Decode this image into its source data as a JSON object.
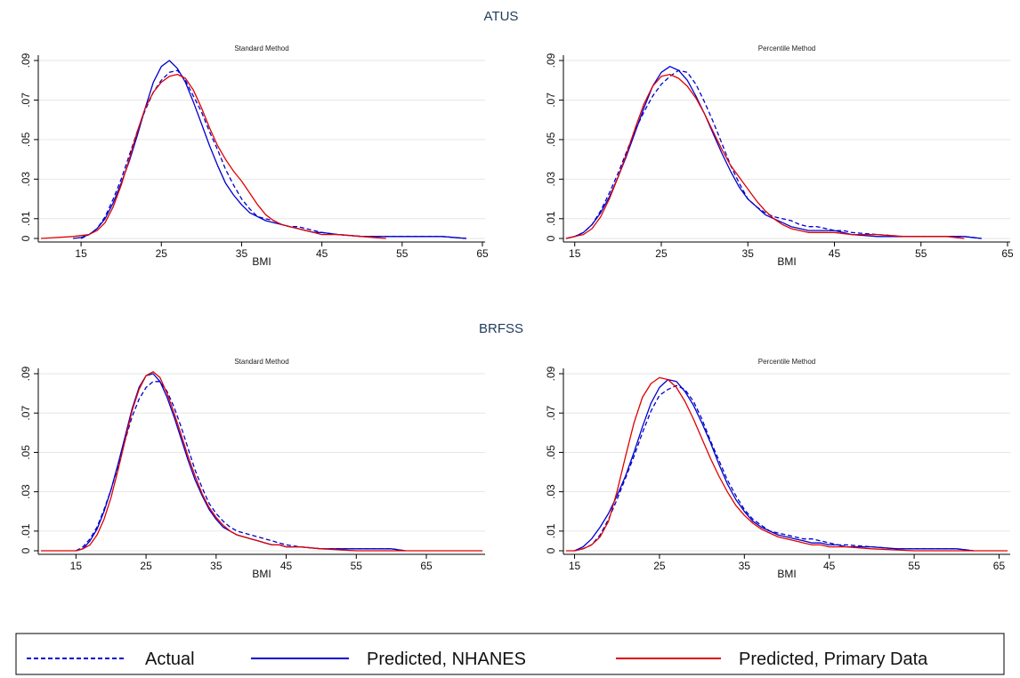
{
  "legend": [
    {
      "label": "Actual",
      "color": "#0000cc",
      "dash": "dashed"
    },
    {
      "label": "Predicted, NHANES",
      "color": "#0000cc",
      "dash": "solid"
    },
    {
      "label": "Predicted, Primary Data",
      "color": "#e00000",
      "dash": "solid"
    }
  ],
  "chart_data": [
    {
      "type": "line",
      "section": "ATUS",
      "title": "Standard Method",
      "xlabel": "BMI",
      "ylabel": "",
      "xlim": [
        10,
        65
      ],
      "ylim": [
        0,
        0.09
      ],
      "xticks": [
        "15",
        "25",
        "35",
        "45",
        "55",
        "65"
      ],
      "yticks": [
        "0",
        ".01",
        ".03",
        ".05",
        ".07",
        ".09"
      ],
      "grid": true,
      "series": [
        {
          "name": "Actual",
          "x": [
            15,
            16,
            17,
            18,
            19,
            20,
            21,
            22,
            23,
            24,
            25,
            26,
            27,
            28,
            29,
            30,
            31,
            32,
            33,
            34,
            35,
            36,
            37,
            38,
            39,
            40,
            41,
            42,
            43,
            44,
            45,
            47,
            50,
            53,
            55,
            58,
            60,
            63
          ],
          "y": [
            0.0,
            0.002,
            0.005,
            0.011,
            0.02,
            0.03,
            0.042,
            0.054,
            0.065,
            0.074,
            0.08,
            0.084,
            0.085,
            0.08,
            0.072,
            0.064,
            0.054,
            0.045,
            0.035,
            0.027,
            0.02,
            0.015,
            0.011,
            0.01,
            0.009,
            0.007,
            0.006,
            0.006,
            0.005,
            0.004,
            0.003,
            0.002,
            0.001,
            0.001,
            0.001,
            0.001,
            0.001,
            0.0
          ]
        },
        {
          "name": "Predicted, NHANES",
          "x": [
            14,
            15,
            16,
            17,
            18,
            19,
            20,
            21,
            22,
            23,
            24,
            25,
            26,
            27,
            28,
            29,
            30,
            31,
            32,
            33,
            34,
            35,
            36,
            37,
            38,
            39,
            40,
            41,
            42,
            43,
            44,
            45,
            47,
            50,
            53,
            55,
            58,
            60,
            63
          ],
          "y": [
            0.0,
            0.0005,
            0.002,
            0.005,
            0.01,
            0.018,
            0.028,
            0.039,
            0.052,
            0.066,
            0.079,
            0.087,
            0.09,
            0.086,
            0.079,
            0.069,
            0.058,
            0.047,
            0.037,
            0.028,
            0.022,
            0.017,
            0.013,
            0.011,
            0.009,
            0.008,
            0.007,
            0.006,
            0.005,
            0.004,
            0.003,
            0.003,
            0.002,
            0.001,
            0.001,
            0.001,
            0.001,
            0.001,
            0.0
          ]
        },
        {
          "name": "Predicted, Primary Data",
          "x": [
            10,
            12,
            14,
            15,
            16,
            17,
            18,
            19,
            20,
            21,
            22,
            23,
            24,
            25,
            26,
            27,
            28,
            29,
            30,
            31,
            32,
            33,
            34,
            35,
            36,
            37,
            38,
            39,
            40,
            41,
            42,
            43,
            44,
            45,
            47,
            50,
            53
          ],
          "y": [
            0.0,
            0.0005,
            0.001,
            0.0015,
            0.002,
            0.004,
            0.008,
            0.016,
            0.027,
            0.04,
            0.054,
            0.066,
            0.074,
            0.079,
            0.082,
            0.083,
            0.081,
            0.075,
            0.066,
            0.056,
            0.047,
            0.04,
            0.034,
            0.029,
            0.023,
            0.017,
            0.012,
            0.009,
            0.007,
            0.006,
            0.005,
            0.004,
            0.003,
            0.002,
            0.002,
            0.001,
            0.0
          ]
        }
      ]
    },
    {
      "type": "line",
      "section": "",
      "title": "Percentile Method",
      "xlabel": "BMI",
      "ylabel": "",
      "xlim": [
        14,
        65
      ],
      "ylim": [
        0,
        0.09
      ],
      "xticks": [
        "15",
        "25",
        "35",
        "45",
        "55",
        "65"
      ],
      "yticks": [
        "0",
        ".01",
        ".03",
        ".05",
        ".07",
        ".09"
      ],
      "grid": true,
      "series": [
        {
          "name": "Actual",
          "x": [
            14,
            15,
            16,
            17,
            18,
            19,
            20,
            21,
            22,
            23,
            24,
            25,
            26,
            27,
            28,
            29,
            30,
            31,
            32,
            33,
            34,
            35,
            36,
            37,
            38,
            39,
            40,
            41,
            42,
            43,
            44,
            45,
            46,
            47,
            50,
            53,
            55,
            58,
            60,
            62
          ],
          "y": [
            0.0,
            0.001,
            0.003,
            0.007,
            0.014,
            0.023,
            0.033,
            0.044,
            0.055,
            0.064,
            0.072,
            0.078,
            0.082,
            0.085,
            0.084,
            0.078,
            0.069,
            0.059,
            0.048,
            0.037,
            0.028,
            0.02,
            0.016,
            0.013,
            0.011,
            0.01,
            0.009,
            0.007,
            0.006,
            0.006,
            0.005,
            0.004,
            0.004,
            0.003,
            0.002,
            0.001,
            0.001,
            0.001,
            0.001,
            0.0
          ]
        },
        {
          "name": "Predicted, NHANES",
          "x": [
            14,
            15,
            16,
            17,
            18,
            19,
            20,
            21,
            22,
            23,
            24,
            25,
            26,
            27,
            28,
            29,
            30,
            31,
            32,
            33,
            34,
            35,
            36,
            37,
            38,
            39,
            40,
            41,
            42,
            43,
            44,
            45,
            46,
            47,
            50,
            53,
            55,
            58,
            60,
            62
          ],
          "y": [
            0.0,
            0.001,
            0.003,
            0.007,
            0.013,
            0.021,
            0.031,
            0.042,
            0.054,
            0.066,
            0.077,
            0.084,
            0.087,
            0.085,
            0.08,
            0.072,
            0.063,
            0.053,
            0.043,
            0.034,
            0.026,
            0.02,
            0.016,
            0.012,
            0.01,
            0.008,
            0.006,
            0.005,
            0.004,
            0.004,
            0.004,
            0.004,
            0.003,
            0.002,
            0.001,
            0.001,
            0.001,
            0.001,
            0.001,
            0.0
          ]
        },
        {
          "name": "Predicted, Primary Data",
          "x": [
            14,
            15,
            16,
            17,
            18,
            19,
            20,
            21,
            22,
            23,
            24,
            25,
            26,
            27,
            28,
            29,
            30,
            31,
            32,
            33,
            34,
            35,
            36,
            37,
            38,
            39,
            40,
            41,
            42,
            43,
            44,
            45,
            47,
            50,
            53,
            55,
            58,
            60
          ],
          "y": [
            0.0,
            0.001,
            0.002,
            0.005,
            0.011,
            0.02,
            0.031,
            0.043,
            0.056,
            0.068,
            0.077,
            0.082,
            0.083,
            0.081,
            0.077,
            0.071,
            0.063,
            0.054,
            0.045,
            0.037,
            0.031,
            0.025,
            0.019,
            0.014,
            0.01,
            0.007,
            0.005,
            0.004,
            0.003,
            0.003,
            0.003,
            0.003,
            0.002,
            0.002,
            0.001,
            0.001,
            0.001,
            0.0
          ]
        }
      ]
    },
    {
      "type": "line",
      "section": "BRFSS",
      "title": "Standard Method",
      "xlabel": "BMI",
      "ylabel": "",
      "xlim": [
        10,
        73
      ],
      "ylim": [
        0,
        0.09
      ],
      "xticks": [
        "15",
        "25",
        "35",
        "45",
        "55",
        "65"
      ],
      "yticks": [
        "0",
        ".01",
        ".03",
        ".05",
        ".07",
        ".09"
      ],
      "grid": true,
      "series": [
        {
          "name": "Actual",
          "x": [
            15,
            16,
            17,
            18,
            19,
            20,
            21,
            22,
            23,
            24,
            25,
            26,
            27,
            28,
            29,
            30,
            31,
            32,
            33,
            34,
            35,
            36,
            37,
            38,
            39,
            40,
            41,
            42,
            43,
            44,
            45,
            47,
            50,
            55,
            58,
            60,
            62
          ],
          "y": [
            0.0,
            0.002,
            0.006,
            0.012,
            0.021,
            0.031,
            0.043,
            0.056,
            0.068,
            0.077,
            0.083,
            0.086,
            0.086,
            0.081,
            0.073,
            0.063,
            0.052,
            0.041,
            0.032,
            0.024,
            0.019,
            0.015,
            0.012,
            0.01,
            0.009,
            0.008,
            0.007,
            0.006,
            0.005,
            0.004,
            0.003,
            0.002,
            0.001,
            0.001,
            0.001,
            0.001,
            0.0
          ]
        },
        {
          "name": "Predicted, NHANES",
          "x": [
            15,
            16,
            17,
            18,
            19,
            20,
            21,
            22,
            23,
            24,
            25,
            26,
            27,
            28,
            29,
            30,
            31,
            32,
            33,
            34,
            35,
            36,
            37,
            38,
            39,
            40,
            41,
            42,
            43,
            44,
            45,
            47,
            50,
            55,
            58,
            60,
            62
          ],
          "y": [
            0.0,
            0.001,
            0.005,
            0.011,
            0.02,
            0.031,
            0.044,
            0.058,
            0.072,
            0.083,
            0.089,
            0.09,
            0.086,
            0.078,
            0.068,
            0.057,
            0.046,
            0.036,
            0.028,
            0.021,
            0.016,
            0.012,
            0.01,
            0.008,
            0.007,
            0.006,
            0.005,
            0.004,
            0.003,
            0.003,
            0.002,
            0.002,
            0.001,
            0.001,
            0.001,
            0.001,
            0.0
          ]
        },
        {
          "name": "Predicted, Primary Data",
          "x": [
            10,
            12,
            14,
            15,
            16,
            17,
            18,
            19,
            20,
            21,
            22,
            23,
            24,
            25,
            26,
            27,
            28,
            29,
            30,
            31,
            32,
            33,
            34,
            35,
            36,
            37,
            38,
            39,
            40,
            41,
            42,
            43,
            44,
            45,
            47,
            50,
            55,
            60,
            65,
            70,
            73
          ],
          "y": [
            0.0,
            0.0,
            0.0,
            0.0,
            0.001,
            0.003,
            0.008,
            0.016,
            0.027,
            0.041,
            0.056,
            0.071,
            0.082,
            0.089,
            0.091,
            0.088,
            0.08,
            0.07,
            0.059,
            0.048,
            0.038,
            0.029,
            0.022,
            0.017,
            0.013,
            0.01,
            0.008,
            0.007,
            0.006,
            0.005,
            0.004,
            0.003,
            0.003,
            0.002,
            0.002,
            0.001,
            0.0,
            0.0,
            0.0,
            0.0,
            0.0
          ]
        }
      ]
    },
    {
      "type": "line",
      "section": "",
      "title": "Percentile Method",
      "xlabel": "BMI",
      "ylabel": "",
      "xlim": [
        14,
        66
      ],
      "ylim": [
        0,
        0.09
      ],
      "xticks": [
        "15",
        "25",
        "35",
        "45",
        "55",
        "65"
      ],
      "yticks": [
        "0",
        ".01",
        ".03",
        ".05",
        ".07",
        ".09"
      ],
      "grid": true,
      "series": [
        {
          "name": "Actual",
          "x": [
            15,
            16,
            17,
            18,
            19,
            20,
            21,
            22,
            23,
            24,
            25,
            26,
            27,
            28,
            29,
            30,
            31,
            32,
            33,
            34,
            35,
            36,
            37,
            38,
            39,
            40,
            41,
            42,
            43,
            44,
            45,
            46,
            47,
            50,
            53,
            55,
            58,
            60,
            62
          ],
          "y": [
            0.0,
            0.001,
            0.003,
            0.008,
            0.016,
            0.026,
            0.037,
            0.048,
            0.06,
            0.071,
            0.079,
            0.082,
            0.084,
            0.082,
            0.076,
            0.067,
            0.056,
            0.046,
            0.036,
            0.028,
            0.021,
            0.016,
            0.013,
            0.01,
            0.009,
            0.008,
            0.007,
            0.006,
            0.006,
            0.005,
            0.004,
            0.003,
            0.003,
            0.002,
            0.001,
            0.001,
            0.001,
            0.001,
            0.0
          ]
        },
        {
          "name": "Predicted, NHANES",
          "x": [
            15,
            16,
            17,
            18,
            19,
            20,
            21,
            22,
            23,
            24,
            25,
            26,
            27,
            28,
            29,
            30,
            31,
            32,
            33,
            34,
            35,
            36,
            37,
            38,
            39,
            40,
            41,
            42,
            43,
            44,
            45,
            46,
            47,
            50,
            53,
            55,
            58,
            60,
            62
          ],
          "y": [
            0.0,
            0.002,
            0.006,
            0.012,
            0.019,
            0.028,
            0.038,
            0.05,
            0.063,
            0.075,
            0.083,
            0.087,
            0.086,
            0.081,
            0.074,
            0.065,
            0.055,
            0.044,
            0.034,
            0.026,
            0.02,
            0.015,
            0.012,
            0.01,
            0.008,
            0.007,
            0.006,
            0.005,
            0.004,
            0.004,
            0.003,
            0.003,
            0.002,
            0.002,
            0.001,
            0.001,
            0.001,
            0.001,
            0.0
          ]
        },
        {
          "name": "Predicted, Primary Data",
          "x": [
            14,
            15,
            16,
            17,
            18,
            19,
            20,
            21,
            22,
            23,
            24,
            25,
            26,
            27,
            28,
            29,
            30,
            31,
            32,
            33,
            34,
            35,
            36,
            37,
            38,
            39,
            40,
            41,
            42,
            43,
            44,
            45,
            47,
            50,
            55,
            60,
            66
          ],
          "y": [
            0.0,
            0.0,
            0.001,
            0.003,
            0.007,
            0.015,
            0.03,
            0.048,
            0.065,
            0.078,
            0.085,
            0.088,
            0.087,
            0.083,
            0.076,
            0.067,
            0.057,
            0.047,
            0.038,
            0.03,
            0.023,
            0.018,
            0.014,
            0.011,
            0.009,
            0.007,
            0.006,
            0.005,
            0.004,
            0.003,
            0.003,
            0.002,
            0.002,
            0.001,
            0.0,
            0.0,
            0.0
          ]
        }
      ]
    }
  ]
}
